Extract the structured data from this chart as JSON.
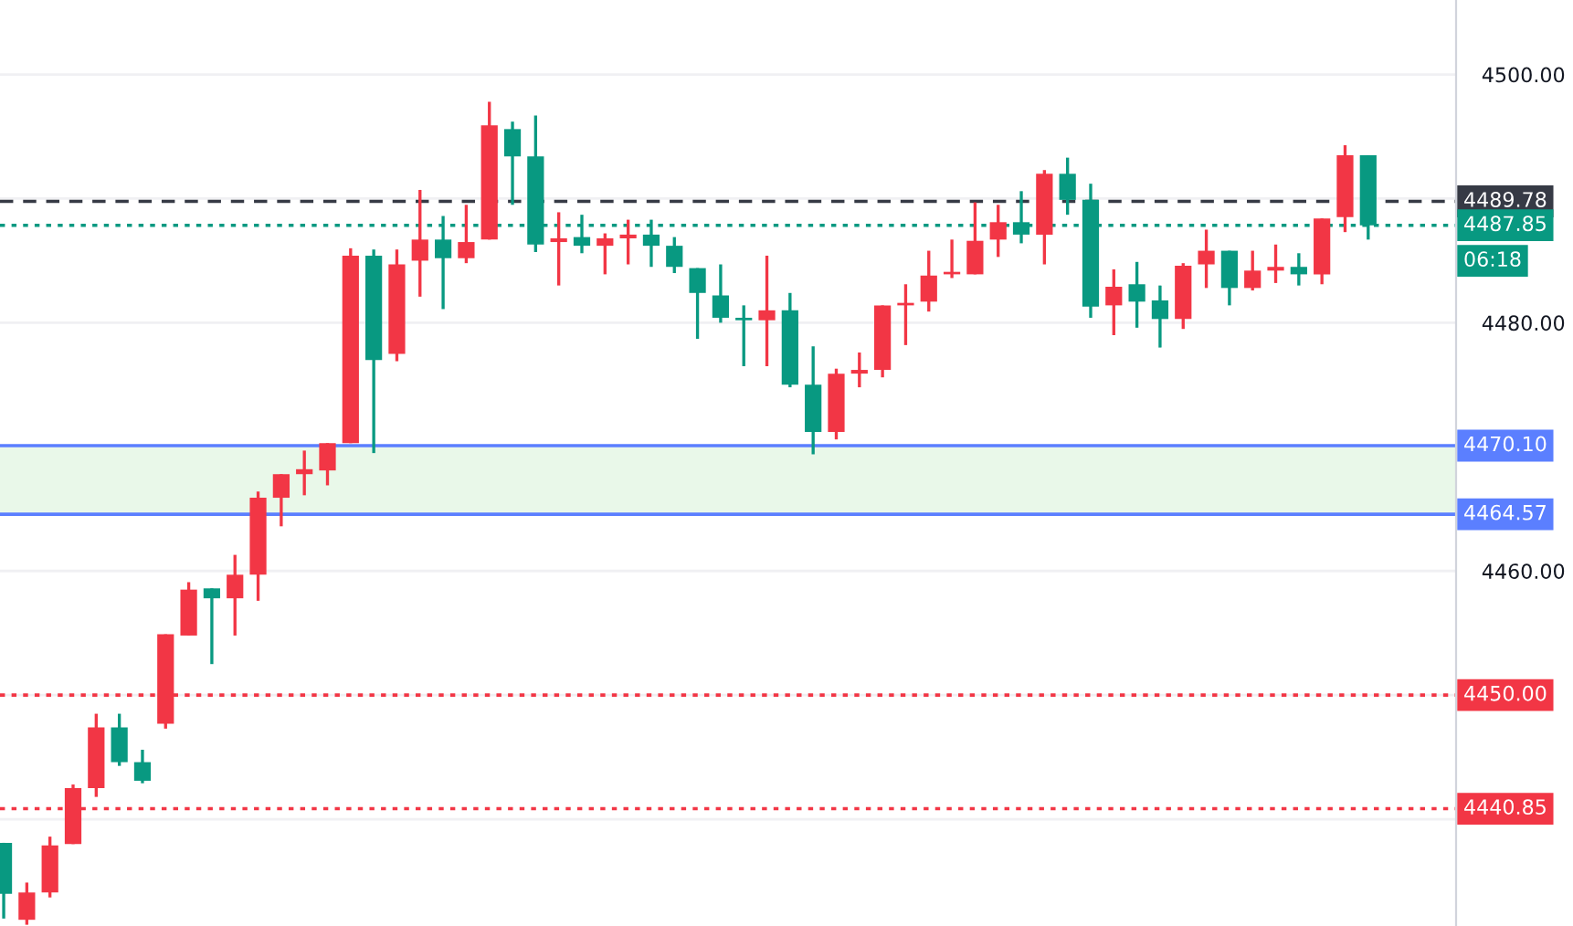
{
  "chart_data": {
    "type": "candlestick",
    "categories": [
      null,
      null,
      null,
      null,
      null,
      null,
      null,
      null,
      null,
      null,
      null,
      null,
      null,
      null,
      null,
      null,
      null,
      null,
      null,
      null,
      null,
      null,
      null,
      null,
      null,
      null,
      null,
      null,
      null,
      null,
      null,
      null,
      null,
      null,
      null,
      null,
      null,
      null,
      null,
      null,
      null,
      null,
      null,
      null,
      null,
      null,
      null,
      null,
      null,
      null,
      null,
      null,
      null,
      null,
      null,
      null,
      null,
      null,
      null,
      null
    ],
    "ohlc": [
      [
        4438.1,
        4438.1,
        4432.0,
        4434.0
      ],
      [
        4431.9,
        4434.9,
        4431.5,
        4434.1
      ],
      [
        4434.1,
        4438.6,
        4433.7,
        4437.9
      ],
      [
        4438.0,
        4442.8,
        4438.0,
        4442.5
      ],
      [
        4442.5,
        4448.5,
        4441.8,
        4447.4
      ],
      [
        4447.4,
        4448.5,
        4444.3,
        4444.6
      ],
      [
        4444.6,
        4445.6,
        4442.9,
        4443.1
      ],
      [
        4447.7,
        4454.9,
        4447.3,
        4454.9
      ],
      [
        4454.8,
        4459.1,
        4454.8,
        4458.5
      ],
      [
        4458.6,
        4458.6,
        4452.5,
        4457.8
      ],
      [
        4457.8,
        4461.3,
        4454.8,
        4459.7
      ],
      [
        4459.7,
        4466.4,
        4457.6,
        4465.9
      ],
      [
        4465.9,
        4467.8,
        4463.6,
        4467.8
      ],
      [
        4467.8,
        4469.7,
        4466.1,
        4468.2
      ],
      [
        4468.1,
        4470.3,
        4466.9,
        4470.3
      ],
      [
        4470.3,
        4486.0,
        4470.3,
        4485.4
      ],
      [
        4485.4,
        4485.9,
        4469.5,
        4477.0
      ],
      [
        4477.5,
        4485.9,
        4476.9,
        4484.7
      ],
      [
        4485.0,
        4490.7,
        4482.1,
        4486.7
      ],
      [
        4486.7,
        4488.6,
        4481.1,
        4485.2
      ],
      [
        4485.2,
        4489.5,
        4484.8,
        4486.5
      ],
      [
        4486.7,
        4497.8,
        4486.7,
        4495.9
      ],
      [
        4495.6,
        4496.2,
        4489.5,
        4493.4
      ],
      [
        4493.4,
        4496.7,
        4485.7,
        4486.3
      ],
      [
        4486.5,
        4488.9,
        4483.0,
        4486.8
      ],
      [
        4486.9,
        4488.7,
        4485.6,
        4486.2
      ],
      [
        4486.2,
        4487.2,
        4483.9,
        4486.8
      ],
      [
        4486.8,
        4488.3,
        4484.7,
        4487.1
      ],
      [
        4487.1,
        4488.3,
        4484.5,
        4486.2
      ],
      [
        4486.2,
        4486.9,
        4484.0,
        4484.5
      ],
      [
        4484.4,
        4484.4,
        4478.7,
        4482.4
      ],
      [
        4482.2,
        4484.7,
        4480.0,
        4480.4
      ],
      [
        4480.4,
        4481.4,
        4476.5,
        4480.2
      ],
      [
        4480.2,
        4485.4,
        4476.5,
        4481.0
      ],
      [
        4481.0,
        4482.4,
        4474.8,
        4475.0
      ],
      [
        4475.0,
        4478.1,
        4469.4,
        4471.2
      ],
      [
        4471.2,
        4476.3,
        4470.6,
        4475.9
      ],
      [
        4475.9,
        4477.6,
        4474.8,
        4476.2
      ],
      [
        4476.2,
        4481.4,
        4475.6,
        4481.4
      ],
      [
        4481.4,
        4483.1,
        4478.2,
        4481.6
      ],
      [
        4481.7,
        4485.8,
        4480.9,
        4483.8
      ],
      [
        4483.9,
        4486.7,
        4483.6,
        4484.1
      ],
      [
        4483.9,
        4489.7,
        4483.9,
        4486.6
      ],
      [
        4486.7,
        4489.5,
        4485.3,
        4488.1
      ],
      [
        4488.1,
        4490.6,
        4486.4,
        4487.1
      ],
      [
        4487.1,
        4492.3,
        4484.7,
        4492.0
      ],
      [
        4492.0,
        4493.3,
        4488.7,
        4489.9
      ],
      [
        4489.9,
        4491.2,
        4480.4,
        4481.3
      ],
      [
        4481.4,
        4484.3,
        4479.0,
        4482.9
      ],
      [
        4483.1,
        4484.9,
        4479.6,
        4481.7
      ],
      [
        4481.8,
        4483.0,
        4478.0,
        4480.3
      ],
      [
        4480.3,
        4484.8,
        4479.5,
        4484.6
      ],
      [
        4484.7,
        4487.5,
        4482.8,
        4485.8
      ],
      [
        4485.8,
        4485.8,
        4481.4,
        4482.8
      ],
      [
        4482.8,
        4485.8,
        4482.6,
        4484.2
      ],
      [
        4484.2,
        4486.3,
        4483.2,
        4484.5
      ],
      [
        4484.5,
        4485.6,
        4483.0,
        4483.9
      ],
      [
        4483.9,
        4488.4,
        4483.1,
        4488.4
      ],
      [
        4488.5,
        4494.3,
        4487.3,
        4493.5
      ],
      [
        4493.5,
        4493.5,
        4486.7,
        4487.85
      ]
    ],
    "colors": [
      "#089981",
      "#f23645",
      "#f23645",
      "#f23645",
      "#f23645",
      "#089981",
      "#089981",
      "#f23645",
      "#f23645",
      "#089981",
      "#f23645",
      "#f23645",
      "#f23645",
      "#f23645",
      "#f23645",
      "#f23645",
      "#089981",
      "#f23645",
      "#f23645",
      "#089981",
      "#f23645",
      "#f23645",
      "#089981",
      "#089981",
      "#f23645",
      "#089981",
      "#f23645",
      "#f23645",
      "#089981",
      "#089981",
      "#089981",
      "#089981",
      "#089981",
      "#f23645",
      "#089981",
      "#089981",
      "#f23645",
      "#f23645",
      "#f23645",
      "#f23645",
      "#f23645",
      "#f23645",
      "#f23645",
      "#f23645",
      "#089981",
      "#f23645",
      "#089981",
      "#089981",
      "#f23645",
      "#089981",
      "#089981",
      "#f23645",
      "#f23645",
      "#089981",
      "#f23645",
      "#f23645",
      "#089981",
      "#f23645",
      "#f23645",
      "#089981"
    ],
    "ylim": [
      4431.4,
      4506.0
    ],
    "yticks": [
      {
        "value": 4440,
        "label": null
      },
      {
        "value": 4450,
        "label": null
      },
      {
        "value": 4460,
        "label": "4460.00"
      },
      {
        "value": 4470,
        "label": null
      },
      {
        "value": 4480,
        "label": "4480.00"
      },
      {
        "value": 4490,
        "label": null
      },
      {
        "value": 4500,
        "label": "4500.00"
      }
    ],
    "grid": "y",
    "ref_lines": [
      {
        "axis": "y",
        "value": 4489.78,
        "label": "4489.78",
        "color": "#363a45",
        "line_style": "dashed"
      },
      {
        "axis": "y",
        "value": 4487.85,
        "label": "4487.85",
        "color": "#089981",
        "line_style": "dotted"
      },
      {
        "axis": "y",
        "value": 4470.1,
        "label": "4470.10",
        "color": "#5b7fff",
        "line_style": "solid"
      },
      {
        "axis": "y",
        "value": 4464.57,
        "label": "4464.57",
        "color": "#5b7fff",
        "line_style": "solid"
      },
      {
        "axis": "y",
        "value": 4450.0,
        "label": "4450.00",
        "color": "#f23645",
        "line_style": "dotted"
      },
      {
        "axis": "y",
        "value": 4440.85,
        "label": "4440.85",
        "color": "#f23645",
        "line_style": "dotted"
      }
    ],
    "bands": [
      {
        "axis": "y",
        "from": 4464.57,
        "to": 4470.1,
        "color": "#e9f8e9"
      }
    ],
    "annotations": [
      "06:18"
    ]
  }
}
